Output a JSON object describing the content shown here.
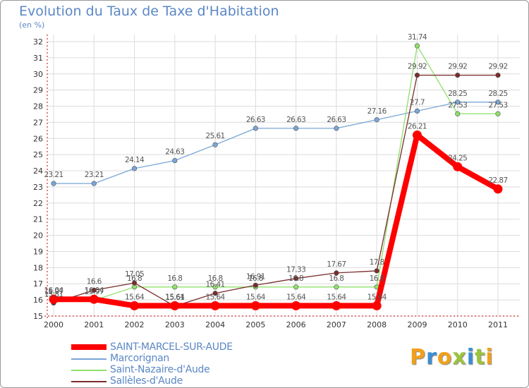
{
  "title": "Evolution du Taux de Taxe d'Habitation",
  "subtitle": "(en %)",
  "logo": "Proxiti",
  "colors": {
    "title": "#5b87c5",
    "axis": "#cc0000",
    "grid": "#dcdcdc"
  },
  "chart_data": {
    "type": "line",
    "x": [
      "2000",
      "2001",
      "2002",
      "2003",
      "2004",
      "2005",
      "2006",
      "2007",
      "2008",
      "2009",
      "2010",
      "2011"
    ],
    "ylim": [
      15,
      32
    ],
    "yticks": [
      15,
      16,
      17,
      18,
      19,
      20,
      21,
      22,
      23,
      24,
      25,
      26,
      27,
      28,
      29,
      30,
      31,
      32
    ],
    "grid": true,
    "legend_position": "bottom-left",
    "series": [
      {
        "name": "SAINT-MARCEL-SUR-AUDE",
        "color": "#ff0000",
        "width": 8,
        "values": [
          16.04,
          16.04,
          15.64,
          15.64,
          15.64,
          15.64,
          15.64,
          15.64,
          15.64,
          26.21,
          24.25,
          22.87
        ],
        "labels": [
          "16.04",
          "16.04",
          "15.64",
          "15.64",
          "15.64",
          "15.64",
          "15.64",
          "15.64",
          "15.64",
          "26.21",
          "24.25",
          "22.87"
        ]
      },
      {
        "name": "Marcorignan",
        "color": "#7aa6d6",
        "width": 1.3,
        "values": [
          23.21,
          23.21,
          24.14,
          24.63,
          25.61,
          26.63,
          26.63,
          26.63,
          27.16,
          27.7,
          28.25,
          28.25
        ],
        "labels": [
          "23.21",
          "23.21",
          "24.14",
          "24.63",
          "25.61",
          "26.63",
          "26.63",
          "26.63",
          "27.16",
          "27.7",
          "28.25",
          "28.25"
        ]
      },
      {
        "name": "Saint-Nazaire-d'Aude",
        "color": "#8fe06a",
        "width": 1.3,
        "values": [
          15.97,
          15.97,
          16.8,
          16.8,
          16.8,
          16.8,
          16.8,
          16.8,
          16.8,
          31.74,
          27.53,
          27.53
        ],
        "labels": [
          "15.97",
          "15.97",
          "16.8",
          "16.8",
          "16.8",
          "16.8",
          "16.8",
          "16.8",
          "16.8",
          "31.74",
          "27.53",
          "27.53"
        ]
      },
      {
        "name": "Sallèles-d'Aude",
        "color": "#7a2c2c",
        "width": 1.3,
        "values": [
          15.81,
          16.6,
          17.05,
          15.61,
          16.41,
          16.91,
          17.33,
          17.67,
          17.8,
          29.92,
          29.92,
          29.92
        ],
        "labels": [
          "15.81",
          "16.6",
          "17.05",
          "15.61",
          "16.41",
          "16.91",
          "17.33",
          "17.67",
          "17.8",
          "29.92",
          "29.92",
          "29.92"
        ]
      }
    ]
  }
}
